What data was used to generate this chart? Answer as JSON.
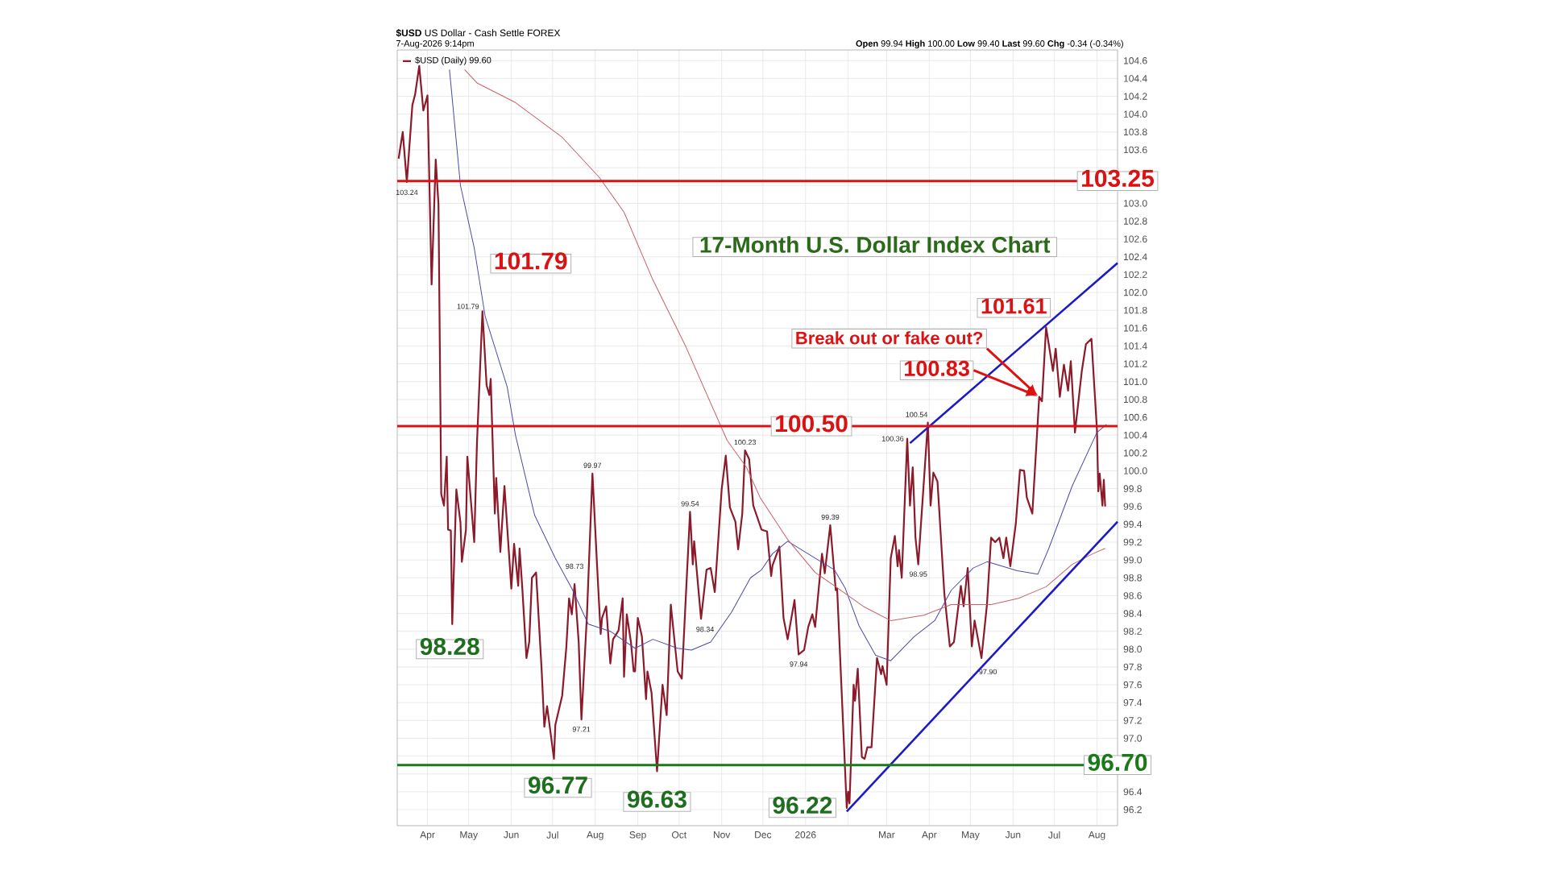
{
  "chart_data": {
    "type": "line",
    "title": "17-Month U.S. Dollar Index Chart",
    "subtitle": "**$USD** US Dollar - Cash Settle FOREX",
    "xlim": [
      "2025-03-10",
      "2026-08-16"
    ],
    "ylim": [
      96.02,
      104.72
    ],
    "xticks": [
      {
        "value": "2025-04-01",
        "label": "Apr"
      },
      {
        "value": "2025-05-01",
        "label": "May"
      },
      {
        "value": "2025-06-01",
        "label": "Jun"
      },
      {
        "value": "2025-07-01",
        "label": "Jul"
      },
      {
        "value": "2025-08-01",
        "label": "Aug"
      },
      {
        "value": "2025-09-01",
        "label": "Sep"
      },
      {
        "value": "2025-10-01",
        "label": "Oct"
      },
      {
        "value": "2025-11-01",
        "label": "Nov"
      },
      {
        "value": "2025-12-01",
        "label": "Dec"
      },
      {
        "value": "2026-01-01",
        "label": "2026"
      },
      {
        "value": "2026-02-01",
        "label": null
      },
      {
        "value": "2026-03-01",
        "label": "Mar"
      },
      {
        "value": "2026-04-01",
        "label": "Apr"
      },
      {
        "value": "2026-05-01",
        "label": "May"
      },
      {
        "value": "2026-06-01",
        "label": "Jun"
      },
      {
        "value": "2026-07-01",
        "label": "Jul"
      },
      {
        "value": "2026-08-01",
        "label": "Aug"
      }
    ],
    "yticks": [
      {
        "value": 96.2,
        "label": "96.2"
      },
      {
        "value": 96.4,
        "label": "96.4"
      },
      {
        "value": 96.6,
        "label": null
      },
      {
        "value": 96.8,
        "label": null
      },
      {
        "value": 97.0,
        "label": "97.0"
      },
      {
        "value": 97.2,
        "label": "97.2"
      },
      {
        "value": 97.4,
        "label": "97.4"
      },
      {
        "value": 97.6,
        "label": "97.6"
      },
      {
        "value": 97.8,
        "label": "97.8"
      },
      {
        "value": 98.0,
        "label": "98.0"
      },
      {
        "value": 98.2,
        "label": "98.2"
      },
      {
        "value": 98.4,
        "label": "98.4"
      },
      {
        "value": 98.6,
        "label": "98.6"
      },
      {
        "value": 98.8,
        "label": "98.8"
      },
      {
        "value": 99.0,
        "label": "99.0"
      },
      {
        "value": 99.2,
        "label": "99.2"
      },
      {
        "value": 99.4,
        "label": "99.4"
      },
      {
        "value": 99.6,
        "label": "99.6"
      },
      {
        "value": 99.8,
        "label": "99.8"
      },
      {
        "value": 100.0,
        "label": "100.0"
      },
      {
        "value": 100.2,
        "label": "100.2"
      },
      {
        "value": 100.4,
        "label": "100.4"
      },
      {
        "value": 100.6,
        "label": "100.6"
      },
      {
        "value": 100.8,
        "label": "100.8"
      },
      {
        "value": 101.0,
        "label": "101.0"
      },
      {
        "value": 101.2,
        "label": "101.2"
      },
      {
        "value": 101.4,
        "label": "101.4"
      },
      {
        "value": 101.6,
        "label": "101.6"
      },
      {
        "value": 101.8,
        "label": "101.8"
      },
      {
        "value": 102.0,
        "label": "102.0"
      },
      {
        "value": 102.2,
        "label": "102.2"
      },
      {
        "value": 102.4,
        "label": "102.4"
      },
      {
        "value": 102.6,
        "label": "102.6"
      },
      {
        "value": 102.8,
        "label": "102.8"
      },
      {
        "value": 103.0,
        "label": "103.0"
      },
      {
        "value": 103.2,
        "label": null
      },
      {
        "value": 103.4,
        "label": null
      },
      {
        "value": 103.6,
        "label": "103.6"
      },
      {
        "value": 103.8,
        "label": "103.8"
      },
      {
        "value": 104.0,
        "label": "104.0"
      },
      {
        "value": 104.2,
        "label": "104.2"
      },
      {
        "value": 104.4,
        "label": "104.4"
      },
      {
        "value": 104.6,
        "label": "104.6"
      }
    ],
    "grid": true,
    "legend": "top left",
    "series": [
      {
        "name": "$USD (Daily) 99.60",
        "color": "#8b1a2b",
        "x": [
          "2025-03-11",
          "2025-03-14",
          "2025-03-17",
          "2025-03-21",
          "2025-03-23",
          "2025-03-26",
          "2025-03-29",
          "2025-04-01",
          "2025-04-04",
          "2025-04-07",
          "2025-04-09",
          "2025-04-11",
          "2025-04-13",
          "2025-04-15",
          "2025-04-16",
          "2025-04-18",
          "2025-04-19",
          "2025-04-22",
          "2025-04-25",
          "2025-04-26",
          "2025-04-29",
          "2025-04-30",
          "2025-05-05",
          "2025-05-07",
          "2025-05-11",
          "2025-05-14",
          "2025-05-16",
          "2025-05-17",
          "2025-05-20",
          "2025-05-21",
          "2025-05-24",
          "2025-05-27",
          "2025-06-01",
          "2025-06-03",
          "2025-06-06",
          "2025-06-07",
          "2025-06-09",
          "2025-06-12",
          "2025-06-14",
          "2025-06-16",
          "2025-06-19",
          "2025-06-23",
          "2025-06-25",
          "2025-06-27",
          "2025-07-02",
          "2025-07-03",
          "2025-07-08",
          "2025-07-11",
          "2025-07-13",
          "2025-07-15",
          "2025-07-17",
          "2025-07-20",
          "2025-07-22",
          "2025-07-26",
          "2025-07-30",
          "2025-08-03",
          "2025-08-05",
          "2025-08-06",
          "2025-08-09",
          "2025-08-12",
          "2025-08-14",
          "2025-08-18",
          "2025-08-21",
          "2025-08-22",
          "2025-08-24",
          "2025-08-27",
          "2025-08-29",
          "2025-08-30",
          "2025-09-01",
          "2025-09-04",
          "2025-09-07",
          "2025-09-08",
          "2025-09-11",
          "2025-09-15",
          "2025-09-19",
          "2025-09-22",
          "2025-09-25",
          "2025-09-30",
          "2025-10-03",
          "2025-10-09",
          "2025-10-11",
          "2025-10-12",
          "2025-10-17",
          "2025-10-21",
          "2025-10-24",
          "2025-10-27",
          "2025-11-01",
          "2025-11-04",
          "2025-11-07",
          "2025-11-11",
          "2025-11-13",
          "2025-11-16",
          "2025-11-18",
          "2025-11-21",
          "2025-11-24",
          "2025-11-30",
          "2025-12-04",
          "2025-12-07",
          "2025-12-08",
          "2025-12-13",
          "2025-12-16",
          "2025-12-19",
          "2025-12-24",
          "2025-12-27",
          "2025-12-31",
          "2026-01-03",
          "2026-01-06",
          "2026-01-08",
          "2026-01-13",
          "2026-01-15",
          "2026-01-19",
          "2026-01-23",
          "2026-01-24",
          "2026-01-31",
          "2026-02-01",
          "2026-02-02",
          "2026-02-05",
          "2026-02-06",
          "2026-02-08",
          "2026-02-11",
          "2026-02-13",
          "2026-02-15",
          "2026-02-18",
          "2026-02-22",
          "2026-02-25",
          "2026-02-26",
          "2026-03-01",
          "2026-03-04",
          "2026-03-07",
          "2026-03-09",
          "2026-03-10",
          "2026-03-12",
          "2026-03-16",
          "2026-03-18",
          "2026-03-20",
          "2026-03-22",
          "2026-03-24",
          "2026-03-31",
          "2026-04-02",
          "2026-04-04",
          "2026-04-07",
          "2026-04-12",
          "2026-04-16",
          "2026-04-19",
          "2026-04-24",
          "2026-04-26",
          "2026-04-29",
          "2026-05-02",
          "2026-05-04",
          "2026-05-09",
          "2026-05-13",
          "2026-05-16",
          "2026-05-19",
          "2026-05-22",
          "2026-05-25",
          "2026-05-27",
          "2026-05-30",
          "2026-06-03",
          "2026-06-06",
          "2026-06-09",
          "2026-06-11",
          "2026-06-15",
          "2026-06-20",
          "2026-06-22",
          "2026-06-25",
          "2026-06-30",
          "2026-07-02",
          "2026-07-05",
          "2026-07-08",
          "2026-07-11",
          "2026-07-13",
          "2026-07-16",
          "2026-07-21",
          "2026-07-24",
          "2026-07-28",
          "2026-08-01",
          "2026-08-02",
          "2026-08-03",
          "2026-08-05",
          "2026-08-06",
          "2026-08-07"
        ],
        "values": [
          103.5,
          103.8,
          103.24,
          104.1,
          104.22,
          104.54,
          104.04,
          104.21,
          102.09,
          103.49,
          102.99,
          99.74,
          99.61,
          100.16,
          99.34,
          99.33,
          98.28,
          99.79,
          99.42,
          98.98,
          99.34,
          100.16,
          99.2,
          100.31,
          101.79,
          100.96,
          100.85,
          101.03,
          99.52,
          99.92,
          99.09,
          99.83,
          98.68,
          99.18,
          98.71,
          99.13,
          98.68,
          97.9,
          98.08,
          98.8,
          98.86,
          97.78,
          97.13,
          97.36,
          96.77,
          97.15,
          97.48,
          98.02,
          98.57,
          98.39,
          98.73,
          98.08,
          97.21,
          98.38,
          99.97,
          98.75,
          98.17,
          98.35,
          98.48,
          97.84,
          98.11,
          98.21,
          98.57,
          97.69,
          98.39,
          98.08,
          97.75,
          97.75,
          98.35,
          98.14,
          97.44,
          97.75,
          97.51,
          96.63,
          97.6,
          97.26,
          98.5,
          97.75,
          97.67,
          99.54,
          98.95,
          99.21,
          98.34,
          98.89,
          98.91,
          98.64,
          99.79,
          100.17,
          99.59,
          99.43,
          99.12,
          99.52,
          100.23,
          100.13,
          99.61,
          99.34,
          99.32,
          98.82,
          98.94,
          99.15,
          98.35,
          98.11,
          98.55,
          97.94,
          97.99,
          98.25,
          98.39,
          98.25,
          99.07,
          98.85,
          99.39,
          98.66,
          98.68,
          96.22,
          96.4,
          96.27,
          97.6,
          97.42,
          97.78,
          96.79,
          96.77,
          96.9,
          96.9,
          97.9,
          97.72,
          97.81,
          97.6,
          99.02,
          99.27,
          98.93,
          99.11,
          98.8,
          100.36,
          99.61,
          100.04,
          99.25,
          98.95,
          100.54,
          99.61,
          99.98,
          99.88,
          98.62,
          98.03,
          98.08,
          98.71,
          98.48,
          98.91,
          98.03,
          98.32,
          97.9,
          98.5,
          99.25,
          99.2,
          99.25,
          99.02,
          99.25,
          98.93,
          99.41,
          100.01,
          100.0,
          99.7,
          99.52,
          100.83,
          100.78,
          101.61,
          101.12,
          101.37,
          100.83,
          101.19,
          100.9,
          101.23,
          100.43,
          101.12,
          101.42,
          101.48,
          100.46,
          99.77,
          99.97,
          99.61,
          99.9,
          99.6
        ]
      },
      {
        "color": "#4b4ba8",
        "x": [
          "2025-04-17",
          "2025-04-25",
          "2025-05-05",
          "2025-05-13",
          "2025-05-29",
          "2025-06-04",
          "2025-06-18",
          "2025-07-03",
          "2025-07-15",
          "2025-07-27",
          "2025-08-12",
          "2025-08-30",
          "2025-09-12",
          "2025-09-30",
          "2025-10-10",
          "2025-10-24",
          "2025-11-08",
          "2025-11-22",
          "2025-11-30",
          "2025-12-08",
          "2025-12-19",
          "2026-01-08",
          "2026-01-22",
          "2026-01-30",
          "2026-02-09",
          "2026-02-21",
          "2026-03-04",
          "2026-03-21",
          "2026-04-05",
          "2026-04-17",
          "2026-05-03",
          "2026-05-13",
          "2026-05-22",
          "2026-06-04",
          "2026-06-19",
          "2026-06-27",
          "2026-07-14",
          "2026-08-01",
          "2026-08-08"
        ],
        "values": [
          104.5,
          103.2,
          102.5,
          101.73,
          100.94,
          100.4,
          99.5,
          99.02,
          98.68,
          98.28,
          98.2,
          98.01,
          98.11,
          98.01,
          97.99,
          98.08,
          98.41,
          98.8,
          98.89,
          99.07,
          99.21,
          99.02,
          98.89,
          98.68,
          98.26,
          97.93,
          97.87,
          98.14,
          98.32,
          98.66,
          98.91,
          98.98,
          98.94,
          98.88,
          98.84,
          99.13,
          99.83,
          100.43,
          100.52
        ]
      },
      {
        "color": "#c8606a",
        "x": [
          "2025-04-28",
          "2025-05-07",
          "2025-06-04",
          "2025-07-08",
          "2025-08-04",
          "2025-08-22",
          "2025-09-12",
          "2025-10-06",
          "2025-11-05",
          "2025-11-19",
          "2025-11-29",
          "2025-12-19",
          "2026-01-08",
          "2026-01-23",
          "2026-02-12",
          "2026-03-04",
          "2026-03-28",
          "2026-04-17",
          "2026-05-16",
          "2026-06-05",
          "2026-06-25",
          "2026-07-14",
          "2026-07-29",
          "2026-08-07"
        ],
        "values": [
          104.5,
          104.35,
          104.13,
          103.74,
          103.29,
          102.9,
          102.14,
          101.39,
          100.34,
          100.04,
          99.7,
          99.23,
          98.86,
          98.7,
          98.48,
          98.32,
          98.38,
          98.5,
          98.5,
          98.57,
          98.7,
          98.95,
          99.07,
          99.13
        ]
      },
      {
        "color": "#1a1ac8",
        "x": [
          "2026-01-31",
          "2026-08-16"
        ],
        "values": [
          96.18,
          99.43
        ]
      },
      {
        "color": "#1a1ac8",
        "x": [
          "2026-03-18",
          "2026-08-16"
        ],
        "values": [
          100.31,
          102.33
        ]
      }
    ],
    "ref_lines": [
      {
        "axis": "y",
        "value": 103.25,
        "label": "103.25",
        "color": "#dd1111"
      },
      {
        "axis": "y",
        "value": 100.5,
        "label": "100.50",
        "color": "#dd1111"
      },
      {
        "axis": "y",
        "value": 96.7,
        "label": "96.70",
        "color": "#1a7a1a"
      }
    ],
    "annotations": [
      "7-Aug-2026 9:14pm",
      "**Open** 99.94 **High** 100.00 **Low** 99.40 **Last** 99.60 **Chg** -0.34 (-0.34%)",
      "Break out or fake out?",
      "100.83",
      {
        "text": "101.61",
        "x": "2026-06-25",
        "y": 101.61
      },
      {
        "text": "101.79",
        "x": "2025-05-11",
        "y": 101.79
      },
      {
        "text": "98.28",
        "x": "2025-04-19",
        "y": 98.28
      },
      {
        "text": "96.77",
        "x": "2025-07-02",
        "y": 96.77
      },
      {
        "text": "96.63",
        "x": "2025-09-15",
        "y": 96.63
      },
      {
        "text": "96.22",
        "x": "2026-01-31",
        "y": 96.22
      },
      {
        "text": "103.24",
        "x": "2025-03-17",
        "y": 103.24
      },
      {
        "text": "101.79",
        "x": "2025-05-11",
        "y": 101.79
      },
      {
        "text": "98.73",
        "x": "2025-07-17",
        "y": 98.73
      },
      {
        "text": "97.21",
        "x": "2025-07-22",
        "y": 97.21
      },
      {
        "text": "99.97",
        "x": "2025-07-30",
        "y": 99.97
      },
      {
        "text": "99.54",
        "x": "2025-10-09",
        "y": 99.54
      },
      {
        "text": "98.34",
        "x": "2025-10-17",
        "y": 98.34
      },
      {
        "text": "100.23",
        "x": "2025-11-18",
        "y": 100.23
      },
      {
        "text": "97.94",
        "x": "2025-12-27",
        "y": 97.94
      },
      {
        "text": "99.39",
        "x": "2026-01-19",
        "y": 99.39
      },
      {
        "text": "100.36",
        "x": "2026-03-16",
        "y": 100.36
      },
      {
        "text": "98.95",
        "x": "2026-03-24",
        "y": 98.95
      },
      {
        "text": "100.54",
        "x": "2026-03-31",
        "y": 100.54
      },
      {
        "text": "97.90",
        "x": "2026-05-09",
        "y": 97.9
      }
    ]
  }
}
